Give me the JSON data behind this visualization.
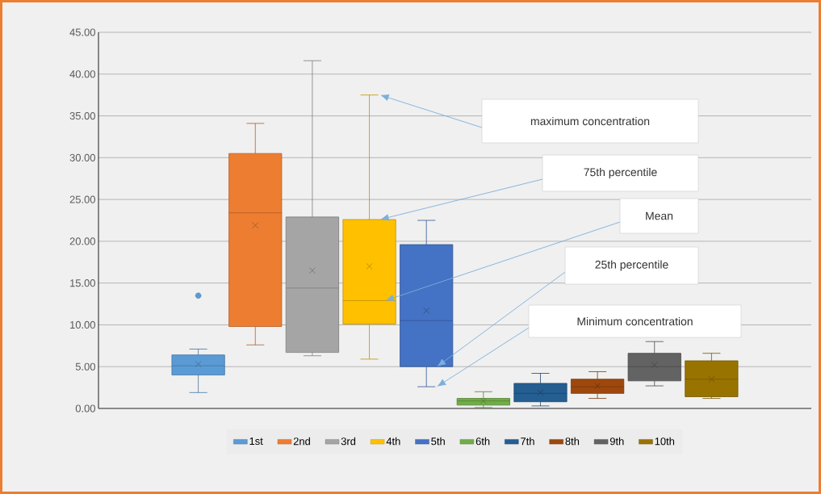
{
  "chart_data": {
    "type": "box",
    "categories": [
      null
    ],
    "series": [
      {
        "name": "1st",
        "color": "#5b9bd5",
        "boxes": [
          {
            "low": 1.9,
            "q1": 4.0,
            "median": 5.1,
            "q3": 6.4,
            "high": 7.1,
            "mean": 5.3,
            "outliers": [
              13.5
            ]
          }
        ]
      },
      {
        "name": "2nd",
        "color": "#ed7d31",
        "boxes": [
          {
            "low": 7.6,
            "q1": 9.8,
            "median": 23.4,
            "q3": 30.5,
            "high": 34.1,
            "mean": 21.9
          }
        ]
      },
      {
        "name": "3rd",
        "color": "#a5a5a5",
        "boxes": [
          {
            "low": 6.3,
            "q1": 6.7,
            "median": 14.4,
            "q3": 22.9,
            "high": 41.6,
            "mean": 16.5
          }
        ]
      },
      {
        "name": "4th",
        "color": "#ffc000",
        "boxes": [
          {
            "low": 5.9,
            "q1": 10.1,
            "median": 12.9,
            "q3": 22.6,
            "high": 37.5,
            "mean": 17.0
          }
        ]
      },
      {
        "name": "5th",
        "color": "#4472c4",
        "boxes": [
          {
            "low": 2.6,
            "q1": 5.0,
            "median": 10.5,
            "q3": 19.6,
            "high": 22.5,
            "mean": 11.7
          }
        ]
      },
      {
        "name": "6th",
        "color": "#70ad47",
        "boxes": [
          {
            "low": 0.1,
            "q1": 0.4,
            "median": 0.9,
            "q3": 1.2,
            "high": 2.0,
            "mean": 0.9
          }
        ]
      },
      {
        "name": "7th",
        "color": "#255e91",
        "boxes": [
          {
            "low": 0.3,
            "q1": 0.8,
            "median": 1.8,
            "q3": 3.0,
            "high": 4.2,
            "mean": 1.9
          }
        ]
      },
      {
        "name": "8th",
        "color": "#9e480e",
        "boxes": [
          {
            "low": 1.2,
            "q1": 1.8,
            "median": 2.6,
            "q3": 3.5,
            "high": 4.4,
            "mean": 2.7
          }
        ]
      },
      {
        "name": "9th",
        "color": "#636363",
        "boxes": [
          {
            "low": 2.7,
            "q1": 3.3,
            "median": 5.0,
            "q3": 6.6,
            "high": 8.0,
            "mean": 5.2
          }
        ]
      },
      {
        "name": "10th",
        "color": "#997300",
        "boxes": [
          {
            "low": 1.2,
            "q1": 1.4,
            "median": 3.5,
            "q3": 5.7,
            "high": 6.6,
            "mean": 3.5
          }
        ]
      }
    ],
    "ylim": [
      0,
      45
    ],
    "yticks": [
      {
        "value": 0,
        "label": "0.00"
      },
      {
        "value": 5,
        "label": "5.00"
      },
      {
        "value": 10,
        "label": "10.00"
      },
      {
        "value": 15,
        "label": "15.00"
      },
      {
        "value": 20,
        "label": "20.00"
      },
      {
        "value": 25,
        "label": "25.00"
      },
      {
        "value": 30,
        "label": "30.00"
      },
      {
        "value": 35,
        "label": "35.00"
      },
      {
        "value": 40,
        "label": "40.00"
      },
      {
        "value": 45,
        "label": "45.00"
      }
    ],
    "grid": "y",
    "legend": "bottom",
    "annotations": [
      "maximum concentration",
      "75th percentile",
      "Mean",
      "25th percentile",
      "Minimum concentration"
    ]
  }
}
